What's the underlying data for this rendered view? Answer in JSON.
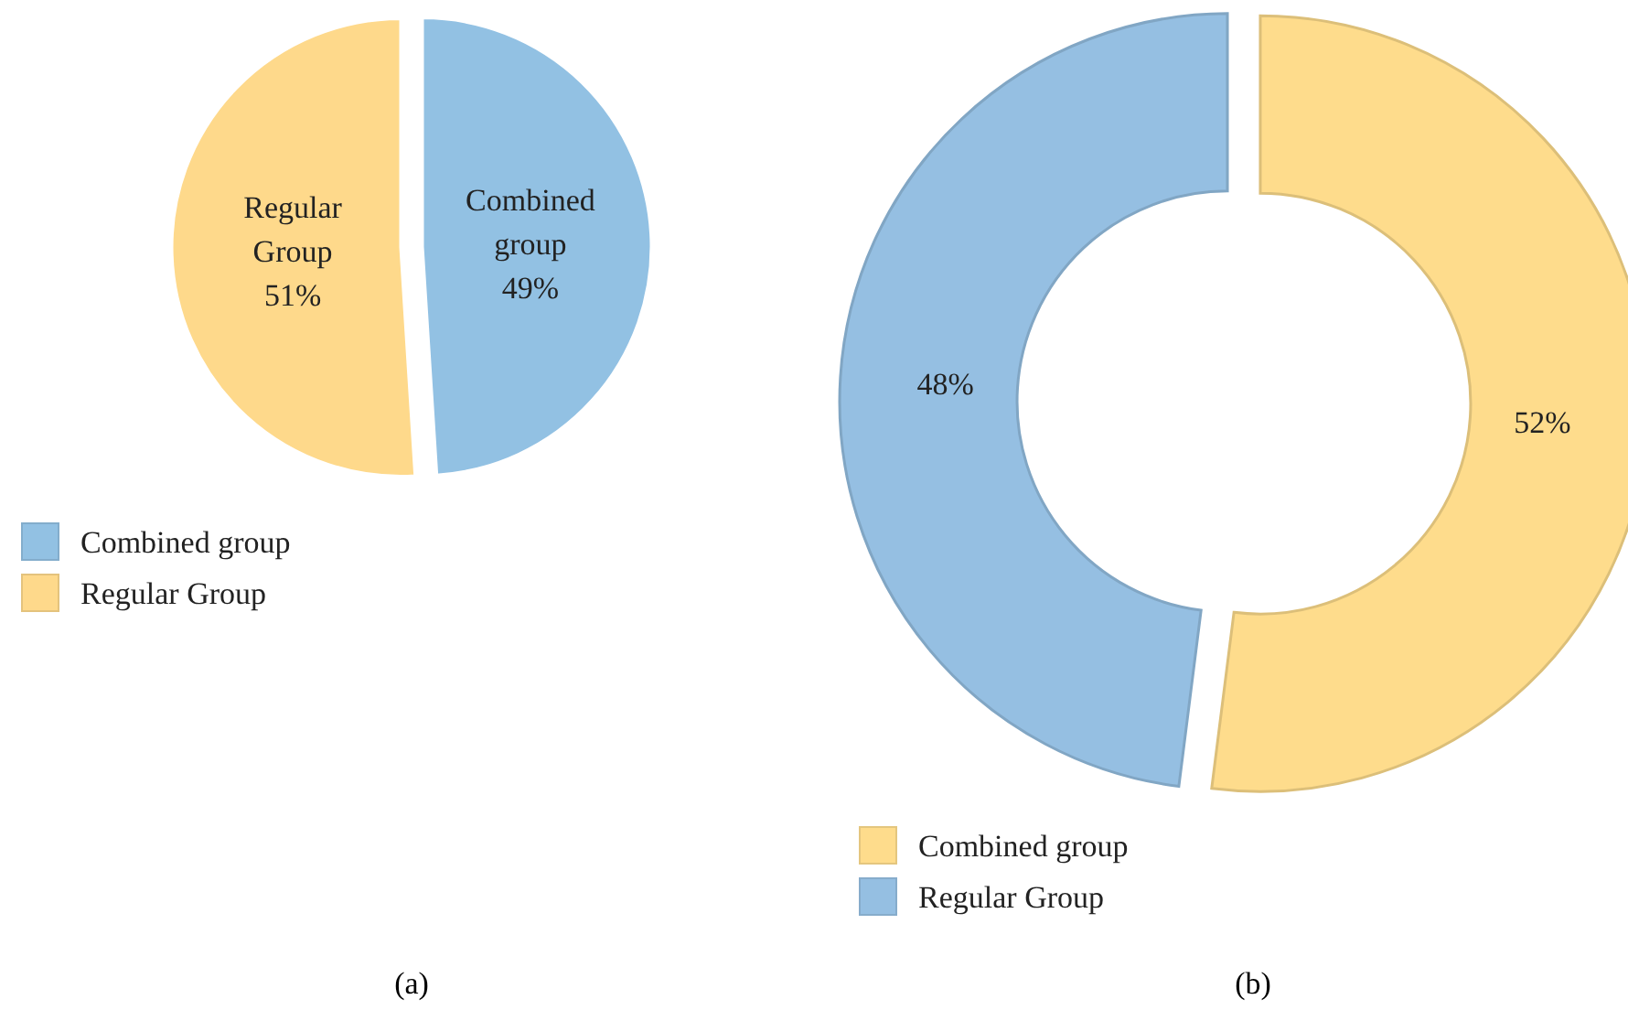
{
  "chart_data": [
    {
      "type": "pie",
      "title": "(a)",
      "categories": [
        "Combined group",
        "Regular Group"
      ],
      "values": [
        49,
        51
      ],
      "colors": [
        "#92c1e3",
        "#fed98b"
      ],
      "value_labels": [
        "49%",
        "51%"
      ],
      "legend": "bottom left"
    },
    {
      "type": "donut",
      "title": "(b)",
      "categories": [
        "Combined group",
        "Regular Group"
      ],
      "values": [
        52,
        48
      ],
      "colors": [
        "#fedc8c",
        "#95bfe2"
      ],
      "value_labels": [
        "52%",
        "48%"
      ],
      "legend": "bottom left"
    }
  ]
}
